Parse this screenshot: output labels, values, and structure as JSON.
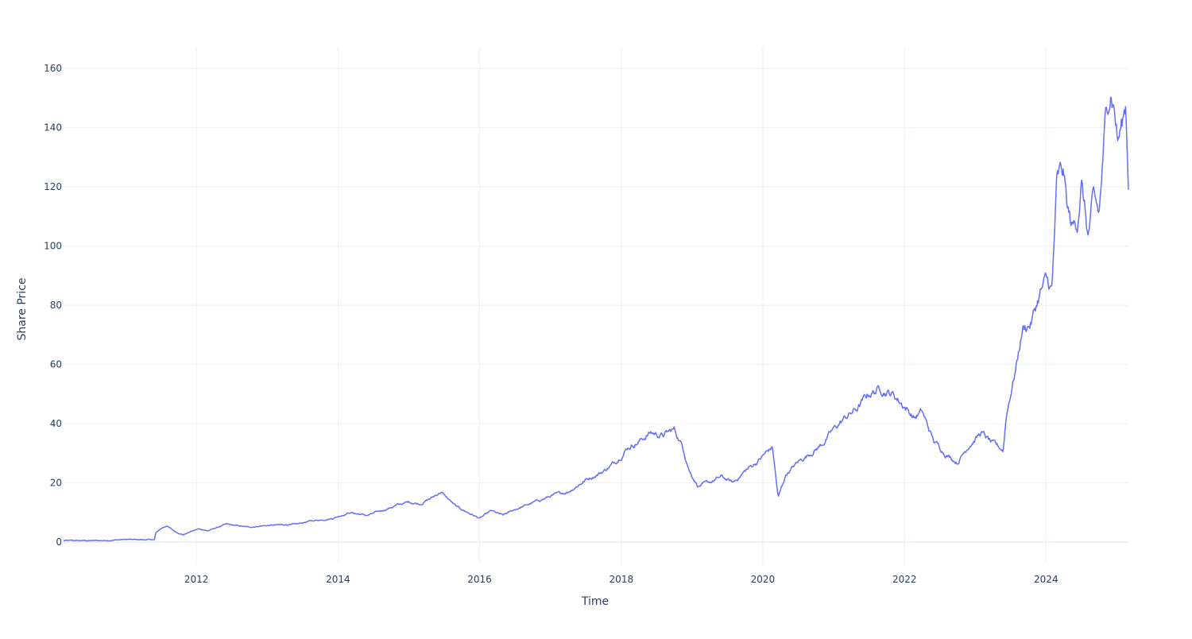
{
  "chart_data": {
    "type": "line",
    "title": "",
    "xlabel": "Time",
    "ylabel": "Share Price",
    "x_ticks": [
      "2012",
      "2014",
      "2016",
      "2018",
      "2020",
      "2022",
      "2024"
    ],
    "y_ticks": [
      0,
      20,
      40,
      60,
      80,
      100,
      120,
      140,
      160
    ],
    "xlim": [
      "2010-02-15",
      "2025-03-01"
    ],
    "ylim": [
      -7.5,
      167
    ],
    "grid": true,
    "legend": "none",
    "colors": {
      "series": "#636efa",
      "grid": "#ebf0f8",
      "text": "#2a3f5f",
      "background": "#ffffff"
    },
    "series": [
      {
        "x": [
          "2010-02-15",
          "2010-06-01",
          "2010-09-01",
          "2010-11-01",
          "2011-01-01",
          "2011-03-01",
          "2011-05-30",
          "2011-06-05",
          "2011-07-01",
          "2011-08-01",
          "2011-09-15",
          "2011-10-25",
          "2011-12-01",
          "2012-01-15",
          "2012-03-01",
          "2012-06-01",
          "2012-08-01",
          "2012-10-01",
          "2012-12-01",
          "2013-03-01",
          "2013-06-01",
          "2013-08-01",
          "2013-10-01",
          "2013-12-01",
          "2014-03-01",
          "2014-06-01",
          "2014-09-01",
          "2014-11-01",
          "2015-01-01",
          "2015-03-01",
          "2015-05-01",
          "2015-06-15",
          "2015-08-01",
          "2015-09-01",
          "2015-11-01",
          "2016-01-01",
          "2016-03-01",
          "2016-05-01",
          "2016-07-01",
          "2016-09-01",
          "2016-11-01",
          "2017-01-01",
          "2017-04-01",
          "2017-07-01",
          "2017-10-01",
          "2017-12-01",
          "2018-02-01",
          "2018-04-01",
          "2018-06-01",
          "2018-08-01",
          "2018-10-01",
          "2018-11-15",
          "2018-12-20",
          "2019-02-01",
          "2019-04-01",
          "2019-06-01",
          "2019-08-01",
          "2019-10-01",
          "2019-12-01",
          "2020-01-15",
          "2020-02-20",
          "2020-03-20",
          "2020-05-01",
          "2020-07-01",
          "2020-09-01",
          "2020-11-01",
          "2021-01-01",
          "2021-03-01",
          "2021-05-01",
          "2021-07-01",
          "2021-09-01",
          "2021-11-01",
          "2022-01-01",
          "2022-02-20",
          "2022-04-01",
          "2022-06-01",
          "2022-08-01",
          "2022-10-01",
          "2022-12-01",
          "2023-02-01",
          "2023-04-01",
          "2023-05-25",
          "2023-06-10",
          "2023-07-01",
          "2023-08-01",
          "2023-09-01",
          "2023-10-15",
          "2023-12-01",
          "2024-01-01",
          "2024-02-01",
          "2024-02-25",
          "2024-03-10",
          "2024-04-01",
          "2024-04-20",
          "2024-05-15",
          "2024-06-10",
          "2024-07-01",
          "2024-08-05",
          "2024-09-01",
          "2024-10-01",
          "2024-11-01",
          "2024-11-20",
          "2024-12-01",
          "2024-12-20",
          "2025-01-05",
          "2025-01-27",
          "2025-02-15",
          "2025-03-01"
        ],
        "y": [
          0.5,
          0.5,
          0.5,
          0.7,
          0.9,
          0.8,
          0.8,
          3.0,
          4.5,
          5.5,
          3.5,
          2.5,
          3.5,
          4.5,
          3.8,
          6.0,
          5.5,
          5.0,
          5.5,
          5.8,
          6.0,
          7.0,
          7.5,
          8.0,
          10.0,
          9.0,
          11.0,
          12.5,
          13.5,
          13.0,
          15.0,
          17.0,
          14.0,
          12.0,
          10.0,
          8.0,
          10.5,
          9.0,
          11.0,
          12.5,
          14.0,
          15.5,
          17.0,
          21.0,
          24.0,
          27.0,
          32.0,
          34.0,
          37.0,
          36.0,
          38.0,
          32.0,
          24.0,
          19.0,
          20.0,
          22.0,
          20.0,
          24.0,
          27.0,
          30.0,
          32.0,
          15.0,
          23.0,
          27.0,
          30.0,
          33.0,
          38.0,
          42.0,
          45.0,
          50.0,
          52.0,
          50.0,
          46.0,
          42.0,
          44.0,
          34.0,
          30.0,
          27.0,
          33.0,
          37.0,
          33.0,
          31.0,
          43.0,
          50.0,
          60.0,
          72.0,
          74.0,
          84.0,
          88.0,
          85.0,
          120.0,
          123.0,
          124.0,
          112.0,
          106.0,
          108.0,
          122.0,
          103.0,
          115.0,
          110.0,
          140.0,
          150.0,
          154.0,
          147.0,
          136.0,
          141.0,
          148.0,
          123.0
        ],
        "color": "#636efa"
      }
    ]
  }
}
